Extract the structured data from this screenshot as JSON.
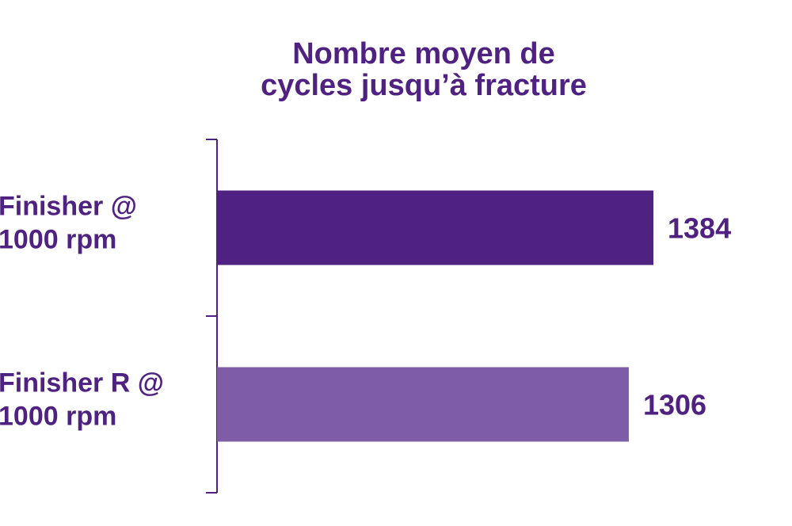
{
  "chart_data": {
    "type": "bar",
    "orientation": "horizontal",
    "title": [
      "Nombre moyen de",
      "cycles jusqu’à fracture"
    ],
    "categories": [
      [
        "Finisher @",
        "1000 rpm"
      ],
      [
        "Finisher R @",
        "1000 rpm"
      ]
    ],
    "values": [
      1384,
      1306
    ],
    "value_labels": [
      "1384",
      "1306"
    ],
    "bar_colors": [
      "#4f2282",
      "#7f5ca6"
    ],
    "axis_color": "#4f2282",
    "xlim": [
      0,
      1384
    ],
    "grid": false,
    "legend": "none"
  }
}
